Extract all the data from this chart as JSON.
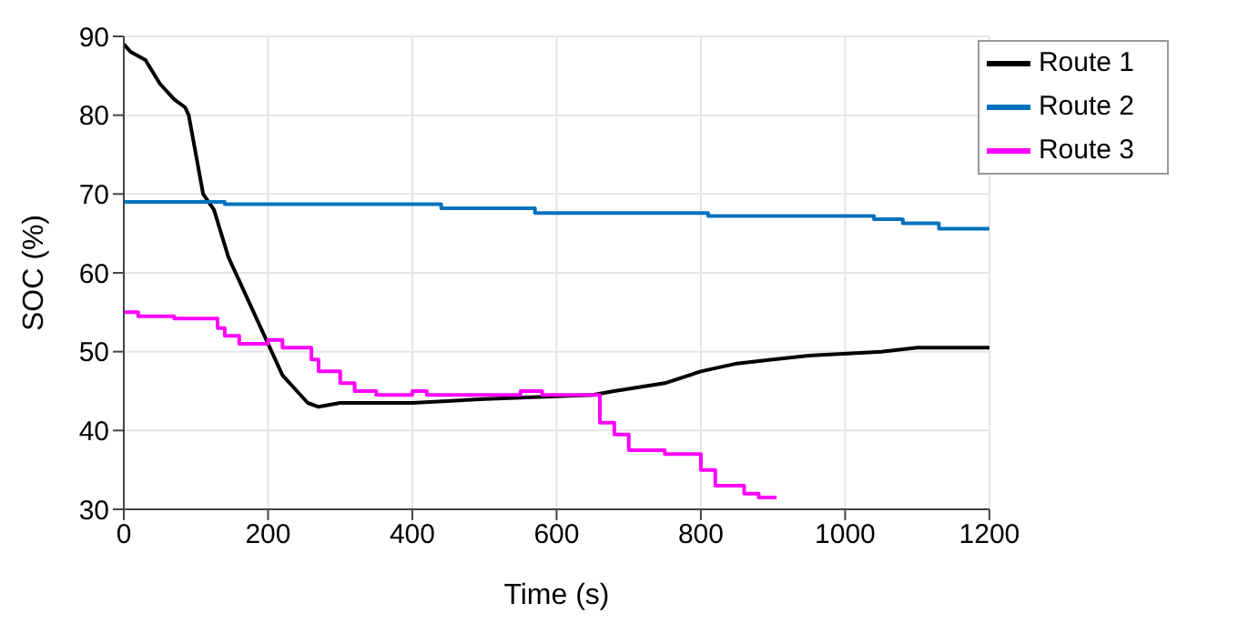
{
  "chart_data": {
    "type": "line",
    "xlabel": "Time (s)",
    "ylabel": "SOC (%)",
    "xlim": [
      0,
      1200
    ],
    "xticks": [
      0,
      200,
      400,
      600,
      800,
      1000,
      1200
    ],
    "ylim": [
      30,
      90
    ],
    "yticks": [
      30,
      40,
      50,
      60,
      70,
      80,
      90
    ],
    "grid": true,
    "legend": "top right",
    "line_style": "solid",
    "marker": "none",
    "series": [
      {
        "name": "Route 1",
        "color": "#000000",
        "x": [
          0,
          10,
          30,
          50,
          70,
          85,
          90,
          100,
          110,
          125,
          135,
          145,
          160,
          175,
          190,
          205,
          220,
          240,
          255,
          270,
          300,
          400,
          500,
          650,
          680,
          750,
          800,
          850,
          900,
          950,
          1050,
          1100,
          1200
        ],
        "values": [
          89,
          88,
          87,
          84,
          82,
          81,
          80,
          75,
          70,
          68,
          65,
          62,
          59,
          56,
          53,
          50,
          47,
          45,
          43.5,
          43,
          43.5,
          43.5,
          44,
          44.5,
          45,
          46,
          47.5,
          48.5,
          49,
          49.5,
          50,
          50.5,
          50.5
        ]
      },
      {
        "name": "Route 2",
        "type": "step",
        "color": "#0072bd",
        "x": [
          0,
          140,
          440,
          570,
          810,
          1040,
          1080,
          1130,
          1200
        ],
        "values": [
          69,
          68.7,
          68.2,
          67.6,
          67.2,
          66.8,
          66.3,
          65.6,
          65.6
        ]
      },
      {
        "name": "Route 3",
        "type": "step",
        "color": "#ff00ff",
        "x": [
          0,
          20,
          70,
          130,
          140,
          160,
          200,
          220,
          260,
          270,
          300,
          320,
          350,
          400,
          420,
          550,
          580,
          660,
          680,
          700,
          750,
          800,
          820,
          860,
          880,
          905
        ],
        "values": [
          55,
          54.5,
          54.2,
          53,
          52,
          51,
          51.5,
          50.5,
          49,
          47.5,
          46,
          45,
          44.5,
          45,
          44.5,
          45,
          44.5,
          41,
          39.5,
          37.5,
          37,
          35,
          33,
          32,
          31.5,
          31.5
        ]
      }
    ]
  }
}
